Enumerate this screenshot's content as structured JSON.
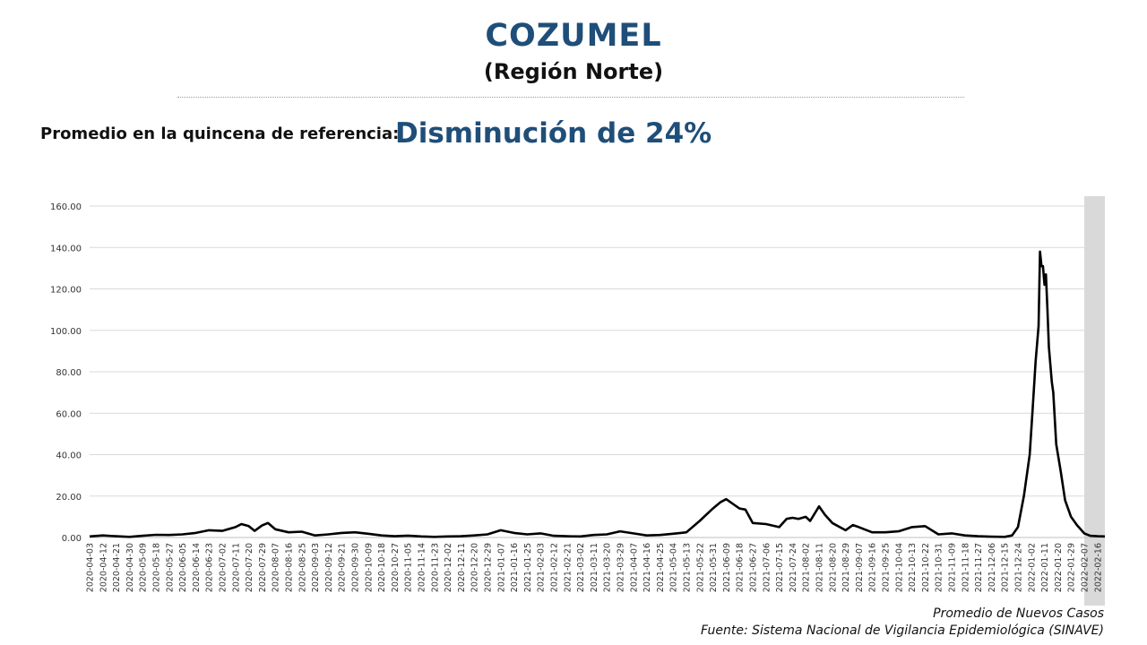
{
  "header": {
    "title": "COZUMEL",
    "subtitle": "(Región Norte)"
  },
  "reference": {
    "label": "Promedio en la quincena de referencia:",
    "value": "Disminución de 24%"
  },
  "footer": {
    "series_label": "Promedio de Nuevos Casos",
    "source": "Fuente: Sistema Nacional de Vigilancia Epidemiológica (SINAVE)"
  },
  "colors": {
    "title": "#1f4e79",
    "line": "#000000",
    "grid": "#d9d9d9",
    "highlight_band": "#d9d9d9"
  },
  "chart_data": {
    "type": "line",
    "title": "",
    "xlabel": "",
    "ylabel": "",
    "ylim": [
      0,
      160
    ],
    "yticks": [
      "0.00",
      "20.00",
      "40.00",
      "60.00",
      "80.00",
      "100.00",
      "120.00",
      "140.00",
      "160.00"
    ],
    "grid": true,
    "x_start": "2020-04-03",
    "x_end": "2022-02-21",
    "xticks": [
      "2020-04-03",
      "2020-04-12",
      "2020-04-21",
      "2020-04-30",
      "2020-05-09",
      "2020-05-18",
      "2020-05-27",
      "2020-06-05",
      "2020-06-14",
      "2020-06-23",
      "2020-07-02",
      "2020-07-11",
      "2020-07-20",
      "2020-07-29",
      "2020-08-07",
      "2020-08-16",
      "2020-08-25",
      "2020-09-03",
      "2020-09-12",
      "2020-09-21",
      "2020-09-30",
      "2020-10-09",
      "2020-10-18",
      "2020-10-27",
      "2020-11-05",
      "2020-11-14",
      "2020-11-23",
      "2020-12-02",
      "2020-12-11",
      "2020-12-20",
      "2020-12-29",
      "2021-01-07",
      "2021-01-16",
      "2021-01-25",
      "2021-02-03",
      "2021-02-12",
      "2021-02-21",
      "2021-03-02",
      "2021-03-11",
      "2021-03-20",
      "2021-03-29",
      "2021-04-07",
      "2021-04-16",
      "2021-04-25",
      "2021-05-04",
      "2021-05-13",
      "2021-05-22",
      "2021-05-31",
      "2021-06-09",
      "2021-06-18",
      "2021-06-27",
      "2021-07-06",
      "2021-07-15",
      "2021-07-24",
      "2021-08-02",
      "2021-08-11",
      "2021-08-20",
      "2021-08-29",
      "2021-09-07",
      "2021-09-16",
      "2021-09-25",
      "2021-10-04",
      "2021-10-13",
      "2021-10-22",
      "2021-10-31",
      "2021-11-09",
      "2021-11-18",
      "2021-11-27",
      "2021-12-06",
      "2021-12-15",
      "2021-12-24",
      "2022-01-02",
      "2022-01-11",
      "2022-01-20",
      "2022-01-29",
      "2022-02-07",
      "2022-02-16"
    ],
    "highlight_range": [
      "2022-02-07",
      "2022-02-21"
    ],
    "series": [
      {
        "name": "Promedio de Nuevos Casos",
        "points": [
          [
            "2020-04-03",
            0.5
          ],
          [
            "2020-04-12",
            1.0
          ],
          [
            "2020-04-21",
            0.6
          ],
          [
            "2020-04-30",
            0.3
          ],
          [
            "2020-05-09",
            0.8
          ],
          [
            "2020-05-18",
            1.3
          ],
          [
            "2020-05-27",
            1.2
          ],
          [
            "2020-06-05",
            1.5
          ],
          [
            "2020-06-14",
            2.2
          ],
          [
            "2020-06-23",
            3.5
          ],
          [
            "2020-07-02",
            3.2
          ],
          [
            "2020-07-11",
            5.0
          ],
          [
            "2020-07-15",
            6.5
          ],
          [
            "2020-07-20",
            5.5
          ],
          [
            "2020-07-24",
            3.2
          ],
          [
            "2020-07-29",
            5.8
          ],
          [
            "2020-08-02",
            7.0
          ],
          [
            "2020-08-07",
            4.0
          ],
          [
            "2020-08-16",
            2.5
          ],
          [
            "2020-08-25",
            2.8
          ],
          [
            "2020-09-03",
            1.0
          ],
          [
            "2020-09-12",
            1.5
          ],
          [
            "2020-09-21",
            2.2
          ],
          [
            "2020-09-30",
            2.5
          ],
          [
            "2020-10-09",
            1.8
          ],
          [
            "2020-10-18",
            1.0
          ],
          [
            "2020-10-27",
            0.6
          ],
          [
            "2020-11-05",
            0.9
          ],
          [
            "2020-11-14",
            0.5
          ],
          [
            "2020-11-23",
            0.3
          ],
          [
            "2020-12-02",
            0.5
          ],
          [
            "2020-12-11",
            0.6
          ],
          [
            "2020-12-20",
            1.0
          ],
          [
            "2020-12-29",
            1.5
          ],
          [
            "2021-01-07",
            3.5
          ],
          [
            "2021-01-16",
            2.2
          ],
          [
            "2021-01-25",
            1.5
          ],
          [
            "2021-02-03",
            2.0
          ],
          [
            "2021-02-12",
            0.8
          ],
          [
            "2021-02-21",
            0.6
          ],
          [
            "2021-03-02",
            0.5
          ],
          [
            "2021-03-11",
            1.2
          ],
          [
            "2021-03-20",
            1.5
          ],
          [
            "2021-03-29",
            3.0
          ],
          [
            "2021-04-07",
            2.0
          ],
          [
            "2021-04-16",
            1.0
          ],
          [
            "2021-04-25",
            1.2
          ],
          [
            "2021-05-04",
            1.8
          ],
          [
            "2021-05-13",
            2.5
          ],
          [
            "2021-05-22",
            8.0
          ],
          [
            "2021-05-31",
            14.0
          ],
          [
            "2021-06-05",
            17.0
          ],
          [
            "2021-06-09",
            18.5
          ],
          [
            "2021-06-14",
            16.0
          ],
          [
            "2021-06-18",
            14.0
          ],
          [
            "2021-06-22",
            13.5
          ],
          [
            "2021-06-27",
            7.0
          ],
          [
            "2021-07-06",
            6.5
          ],
          [
            "2021-07-15",
            5.0
          ],
          [
            "2021-07-20",
            9.0
          ],
          [
            "2021-07-24",
            9.5
          ],
          [
            "2021-07-28",
            9.0
          ],
          [
            "2021-08-02",
            10.0
          ],
          [
            "2021-08-05",
            8.0
          ],
          [
            "2021-08-11",
            15.0
          ],
          [
            "2021-08-15",
            11.0
          ],
          [
            "2021-08-20",
            7.0
          ],
          [
            "2021-08-29",
            3.5
          ],
          [
            "2021-09-03",
            6.0
          ],
          [
            "2021-09-07",
            5.0
          ],
          [
            "2021-09-16",
            2.5
          ],
          [
            "2021-09-25",
            2.5
          ],
          [
            "2021-10-04",
            3.0
          ],
          [
            "2021-10-13",
            5.0
          ],
          [
            "2021-10-22",
            5.5
          ],
          [
            "2021-10-31",
            1.5
          ],
          [
            "2021-11-09",
            2.0
          ],
          [
            "2021-11-18",
            1.0
          ],
          [
            "2021-11-27",
            0.6
          ],
          [
            "2021-12-06",
            0.4
          ],
          [
            "2021-12-15",
            0.3
          ],
          [
            "2021-12-20",
            1.0
          ],
          [
            "2021-12-24",
            5.0
          ],
          [
            "2021-12-28",
            20.0
          ],
          [
            "2022-01-01",
            40.0
          ],
          [
            "2022-01-03",
            62.0
          ],
          [
            "2022-01-05",
            85.0
          ],
          [
            "2022-01-07",
            102.0
          ],
          [
            "2022-01-08",
            138.0
          ],
          [
            "2022-01-09",
            131.0
          ],
          [
            "2022-01-10",
            131.0
          ],
          [
            "2022-01-11",
            122.0
          ],
          [
            "2022-01-12",
            127.0
          ],
          [
            "2022-01-13",
            110.0
          ],
          [
            "2022-01-14",
            92.0
          ],
          [
            "2022-01-16",
            75.0
          ],
          [
            "2022-01-17",
            70.0
          ],
          [
            "2022-01-19",
            45.0
          ],
          [
            "2022-01-22",
            32.0
          ],
          [
            "2022-01-25",
            18.0
          ],
          [
            "2022-01-29",
            10.0
          ],
          [
            "2022-02-02",
            6.0
          ],
          [
            "2022-02-07",
            2.0
          ],
          [
            "2022-02-11",
            0.8
          ],
          [
            "2022-02-16",
            0.6
          ],
          [
            "2022-02-21",
            0.5
          ]
        ]
      }
    ]
  }
}
